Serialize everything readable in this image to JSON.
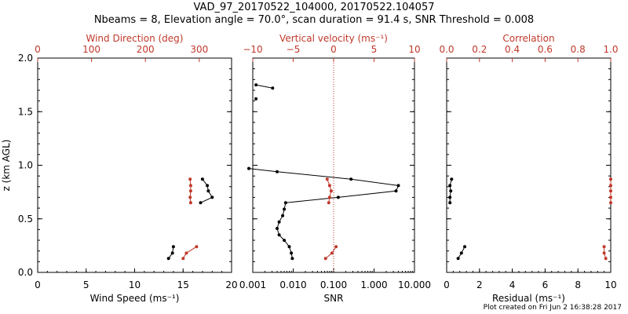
{
  "header": {
    "line1": "VAD_97_20170522_104000, 20170522.104057",
    "line2": "Nbeams = 8, Elevation angle = 70.0°, scan duration = 91.4 s, SNR Threshold = 0.008"
  },
  "footer": {
    "note": "Plot created on Fri Jun  2 16:38:28 2017"
  },
  "colors": {
    "black": "#000000",
    "red": "#c0392b"
  },
  "y_axis": {
    "label": "z (km AGL)",
    "range": [
      0.0,
      2.0
    ],
    "ticks": [
      0.0,
      0.5,
      1.0,
      1.5,
      2.0
    ],
    "tick_labels": [
      "0.0",
      "0.5",
      "1.0",
      "1.5",
      "2.0"
    ]
  },
  "chart_data": [
    {
      "type": "line",
      "panel": "wind",
      "ylim": [
        0.0,
        2.0
      ],
      "xlabel": "Wind Speed (ms⁻¹)",
      "xlim": [
        0,
        20
      ],
      "x_ticks": [
        0,
        5,
        10,
        15,
        20
      ],
      "x_tick_labels": [
        "0",
        "5",
        "10",
        "15",
        "20"
      ],
      "top_xlabel": "Wind Direction (deg)",
      "top_xlim": [
        0,
        360
      ],
      "top_x_ticks": [
        0,
        100,
        200,
        300
      ],
      "top_x_tick_labels": [
        "0",
        "100",
        "200",
        "300"
      ],
      "series": [
        {
          "axis": "bottom",
          "color": "#000000",
          "segments": [
            [
              [
                17.0,
                0.87
              ],
              [
                17.5,
                0.81
              ],
              [
                17.6,
                0.76
              ],
              [
                18.0,
                0.7
              ],
              [
                16.8,
                0.65
              ]
            ],
            [
              [
                14.0,
                0.24
              ],
              [
                13.9,
                0.18
              ],
              [
                13.5,
                0.13
              ]
            ]
          ]
        },
        {
          "axis": "top",
          "color": "#c0392b",
          "segments": [
            [
              [
                283,
                0.87
              ],
              [
                284,
                0.81
              ],
              [
                284,
                0.76
              ],
              [
                283,
                0.7
              ],
              [
                284,
                0.65
              ]
            ],
            [
              [
                295,
                0.24
              ],
              [
                276,
                0.18
              ],
              [
                270,
                0.13
              ]
            ]
          ]
        }
      ]
    },
    {
      "type": "line",
      "panel": "snr",
      "ylim": [
        0.0,
        2.0
      ],
      "xlabel": "SNR",
      "xscale": "log",
      "xlim": [
        0.001,
        10.0
      ],
      "x_ticks": [
        0.001,
        0.01,
        0.1,
        1.0,
        10.0
      ],
      "x_tick_labels": [
        "0.001",
        "0.010",
        "0.100",
        "1.000",
        "10.000"
      ],
      "top_xlabel": "Vertical velocity (ms⁻¹)",
      "top_xlim": [
        -10,
        10
      ],
      "top_x_ticks": [
        -10,
        -5,
        0,
        5,
        10
      ],
      "top_x_tick_labels": [
        "−10",
        "−5",
        "0",
        "5",
        "10"
      ],
      "reference_line": {
        "axis": "top",
        "value": 0,
        "style": "dotted",
        "color": "#c0392b"
      },
      "series": [
        {
          "axis": "bottom",
          "color": "#000000",
          "segments": [
            [
              [
                0.0012,
                1.75
              ],
              [
                0.0031,
                1.72
              ]
            ],
            [
              [
                0.0012,
                1.62
              ]
            ],
            [
              [
                0.0008,
                0.97
              ],
              [
                0.004,
                0.94
              ],
              [
                0.27,
                0.87
              ],
              [
                4.0,
                0.81
              ],
              [
                3.5,
                0.76
              ],
              [
                0.13,
                0.7
              ],
              [
                0.0065,
                0.65
              ],
              [
                0.006,
                0.59
              ],
              [
                0.0055,
                0.53
              ],
              [
                0.0045,
                0.47
              ],
              [
                0.004,
                0.41
              ],
              [
                0.0045,
                0.35
              ],
              [
                0.006,
                0.3
              ],
              [
                0.008,
                0.24
              ],
              [
                0.009,
                0.18
              ],
              [
                0.0095,
                0.13
              ]
            ]
          ]
        },
        {
          "axis": "top",
          "color": "#c0392b",
          "segments": [
            [
              [
                -0.8,
                0.87
              ],
              [
                -0.5,
                0.81
              ],
              [
                -0.3,
                0.76
              ],
              [
                -0.5,
                0.7
              ],
              [
                -0.6,
                0.65
              ]
            ],
            [
              [
                0.3,
                0.24
              ],
              [
                -0.2,
                0.18
              ],
              [
                -1.0,
                0.13
              ]
            ]
          ]
        }
      ]
    },
    {
      "type": "line",
      "panel": "residual",
      "ylim": [
        0.0,
        2.0
      ],
      "xlabel": "Residual (ms⁻¹)",
      "xlim": [
        0,
        10
      ],
      "x_ticks": [
        0,
        2,
        4,
        6,
        8,
        10
      ],
      "x_tick_labels": [
        "0",
        "2",
        "4",
        "6",
        "8",
        "10"
      ],
      "top_xlabel": "Correlation",
      "top_xlim": [
        0.0,
        1.0
      ],
      "top_x_ticks": [
        0.0,
        0.2,
        0.4,
        0.6,
        0.8,
        1.0
      ],
      "top_x_tick_labels": [
        "0.0",
        "0.2",
        "0.4",
        "0.6",
        "0.8",
        "1.0"
      ],
      "series": [
        {
          "axis": "bottom",
          "color": "#000000",
          "segments": [
            [
              [
                0.3,
                0.87
              ],
              [
                0.2,
                0.81
              ],
              [
                0.25,
                0.76
              ],
              [
                0.2,
                0.7
              ],
              [
                0.2,
                0.65
              ]
            ],
            [
              [
                1.1,
                0.24
              ],
              [
                0.9,
                0.18
              ],
              [
                0.7,
                0.13
              ]
            ]
          ]
        },
        {
          "axis": "top",
          "color": "#c0392b",
          "segments": [
            [
              [
                1.0,
                0.87
              ],
              [
                1.0,
                0.81
              ],
              [
                1.0,
                0.76
              ],
              [
                1.0,
                0.7
              ],
              [
                1.0,
                0.65
              ]
            ],
            [
              [
                0.96,
                0.24
              ],
              [
                0.96,
                0.18
              ],
              [
                0.97,
                0.13
              ]
            ]
          ]
        }
      ]
    }
  ]
}
